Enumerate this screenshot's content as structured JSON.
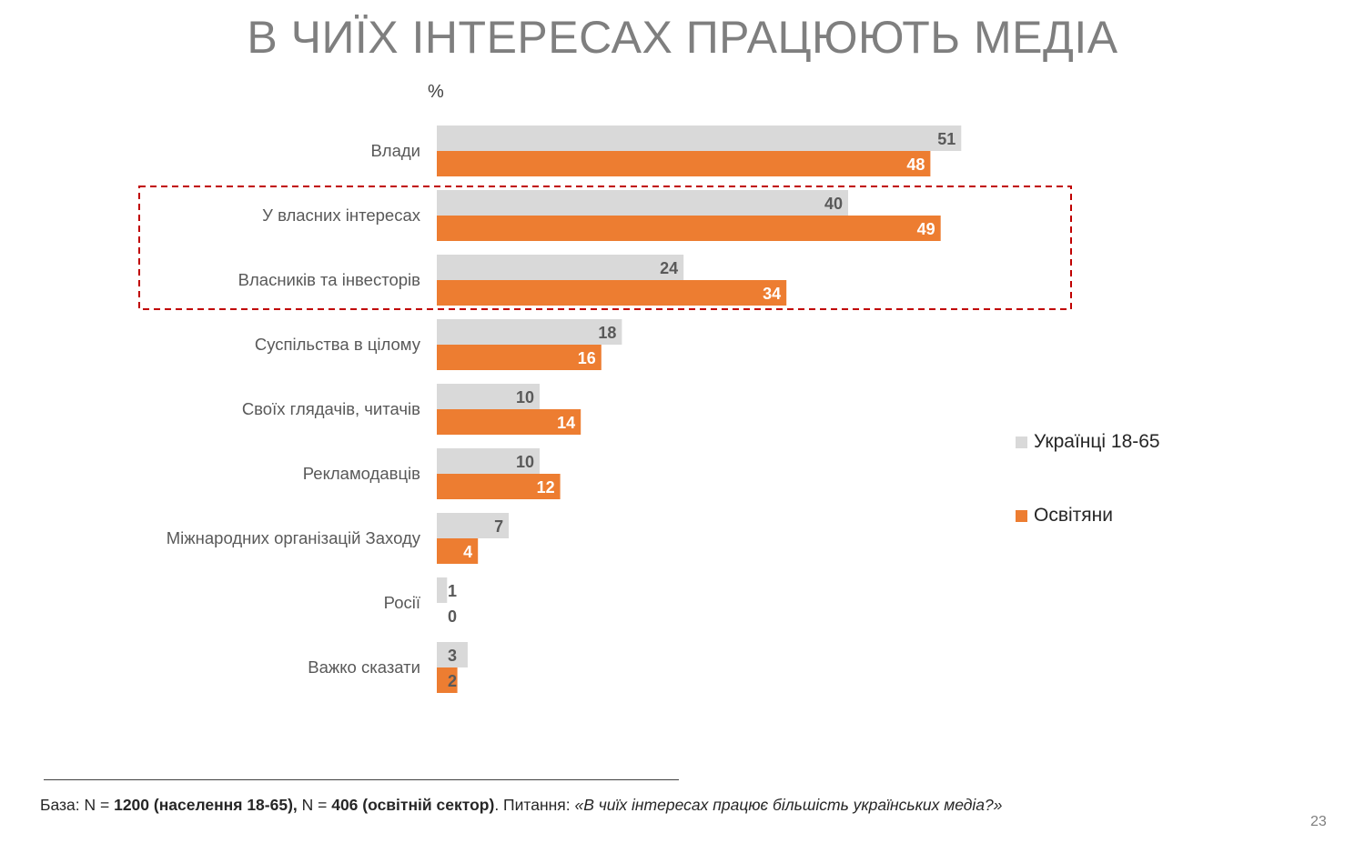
{
  "slide": {
    "title": "В ЧИЇХ ІНТЕРЕСАХ ПРАЦЮЮТЬ МЕДІА",
    "unit": "%",
    "page_number": "23"
  },
  "footer": {
    "prefix": "База: N = ",
    "n1": "1200 (населення 18-65),",
    "mid": " N = ",
    "n2": "406 (освітній сектор)",
    "question_prefix": ". Питання: ",
    "question": "«В чиїх інтересах працює більшість українських медіа?»"
  },
  "colors": {
    "series_1": "#d9d9d9",
    "series_2": "#ed7d31",
    "highlight_box": "#c00000",
    "label_dark": "#595959",
    "label_light": "#ffffff"
  },
  "chart_data": {
    "type": "bar",
    "orientation": "horizontal",
    "categories": [
      "Влади",
      "У власних інтересах",
      "Власників та інвесторів",
      "Суспільства в цілому",
      "Своїх глядачів, читачів",
      "Рекламодавців",
      "Міжнародних організацій Заходу",
      "Росії",
      "Важко сказати"
    ],
    "series": [
      {
        "name": "Українці 18-65",
        "values": [
          51,
          40,
          24,
          18,
          10,
          10,
          7,
          1,
          3
        ]
      },
      {
        "name": "Освітяни",
        "values": [
          48,
          49,
          34,
          16,
          14,
          12,
          4,
          0,
          2
        ]
      }
    ],
    "xlim": [
      0,
      60
    ],
    "legend_position": "right",
    "grid": false,
    "highlighted_categories": [
      "У власних інтересах",
      "Власників та інвесторів"
    ]
  }
}
